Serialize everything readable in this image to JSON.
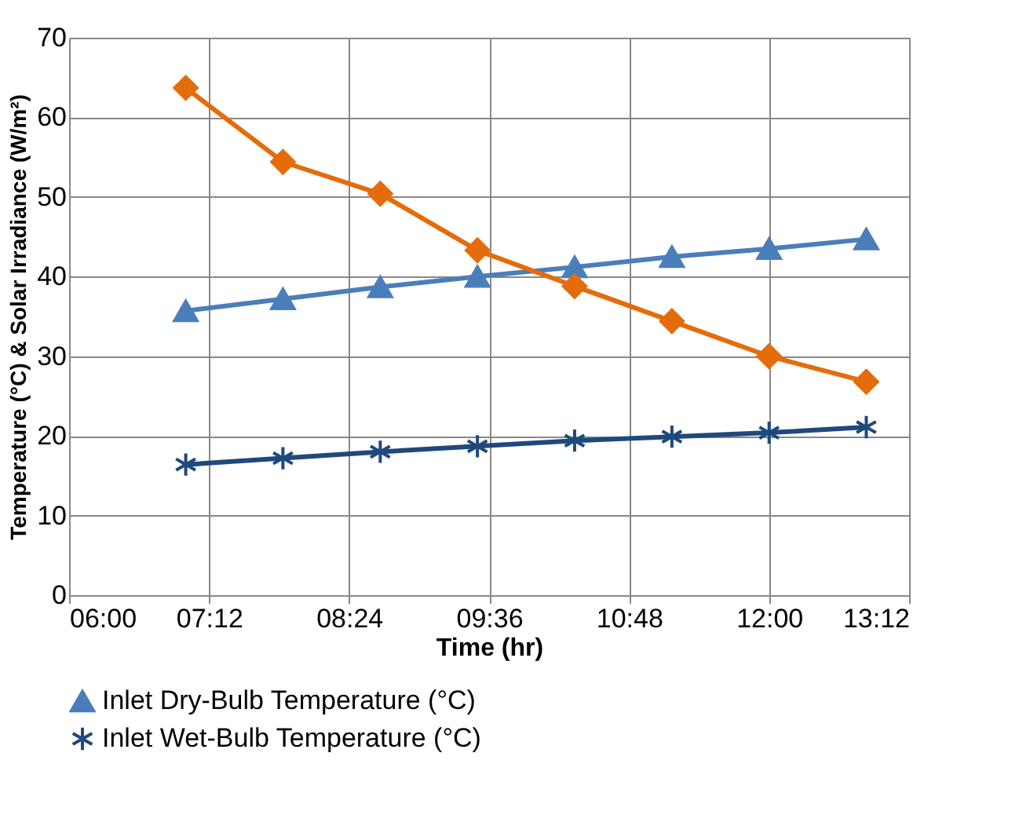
{
  "chart_data": {
    "type": "line",
    "xlabel": "Time (hr)",
    "ylabel": "Temperature (°C) & Solar Irradiance (W/m²)",
    "x": [
      7.0,
      7.833,
      8.667,
      9.5,
      10.333,
      11.167,
      12.0,
      12.833
    ],
    "series": [
      {
        "name": "Inlet Dry-Bulb Temperature (°C)",
        "color": "#4a7ebb",
        "marker": "triangle",
        "values": [
          35.7,
          37.2,
          38.7,
          40.0,
          41.2,
          42.5,
          43.5,
          44.7
        ]
      },
      {
        "name": "Inlet Wet-Bulb Temperature (°C)",
        "color": "#1f497d",
        "marker": "cross",
        "values": [
          16.4,
          17.2,
          18.0,
          18.7,
          19.4,
          19.9,
          20.4,
          21.1
        ]
      },
      {
        "color": "#e46c0a",
        "marker": "diamond",
        "values": [
          63.7,
          54.4,
          50.4,
          43.3,
          38.8,
          34.4,
          30.0,
          26.8
        ]
      }
    ],
    "xlim": [
      6.0,
      13.2
    ],
    "xticks": [
      {
        "value": 6.0,
        "label": "06:00"
      },
      {
        "value": 7.2,
        "label": "07:12"
      },
      {
        "value": 8.4,
        "label": "08:24"
      },
      {
        "value": 9.6,
        "label": "09:36"
      },
      {
        "value": 10.8,
        "label": "10:48"
      },
      {
        "value": 12.0,
        "label": "12:00"
      },
      {
        "value": 13.2,
        "label": "13:12"
      }
    ],
    "ylim": [
      0,
      70
    ],
    "yticks": [
      0,
      10,
      20,
      30,
      40,
      50,
      60,
      70
    ],
    "grid": true,
    "legend": "bottom",
    "line_style": "solid"
  }
}
